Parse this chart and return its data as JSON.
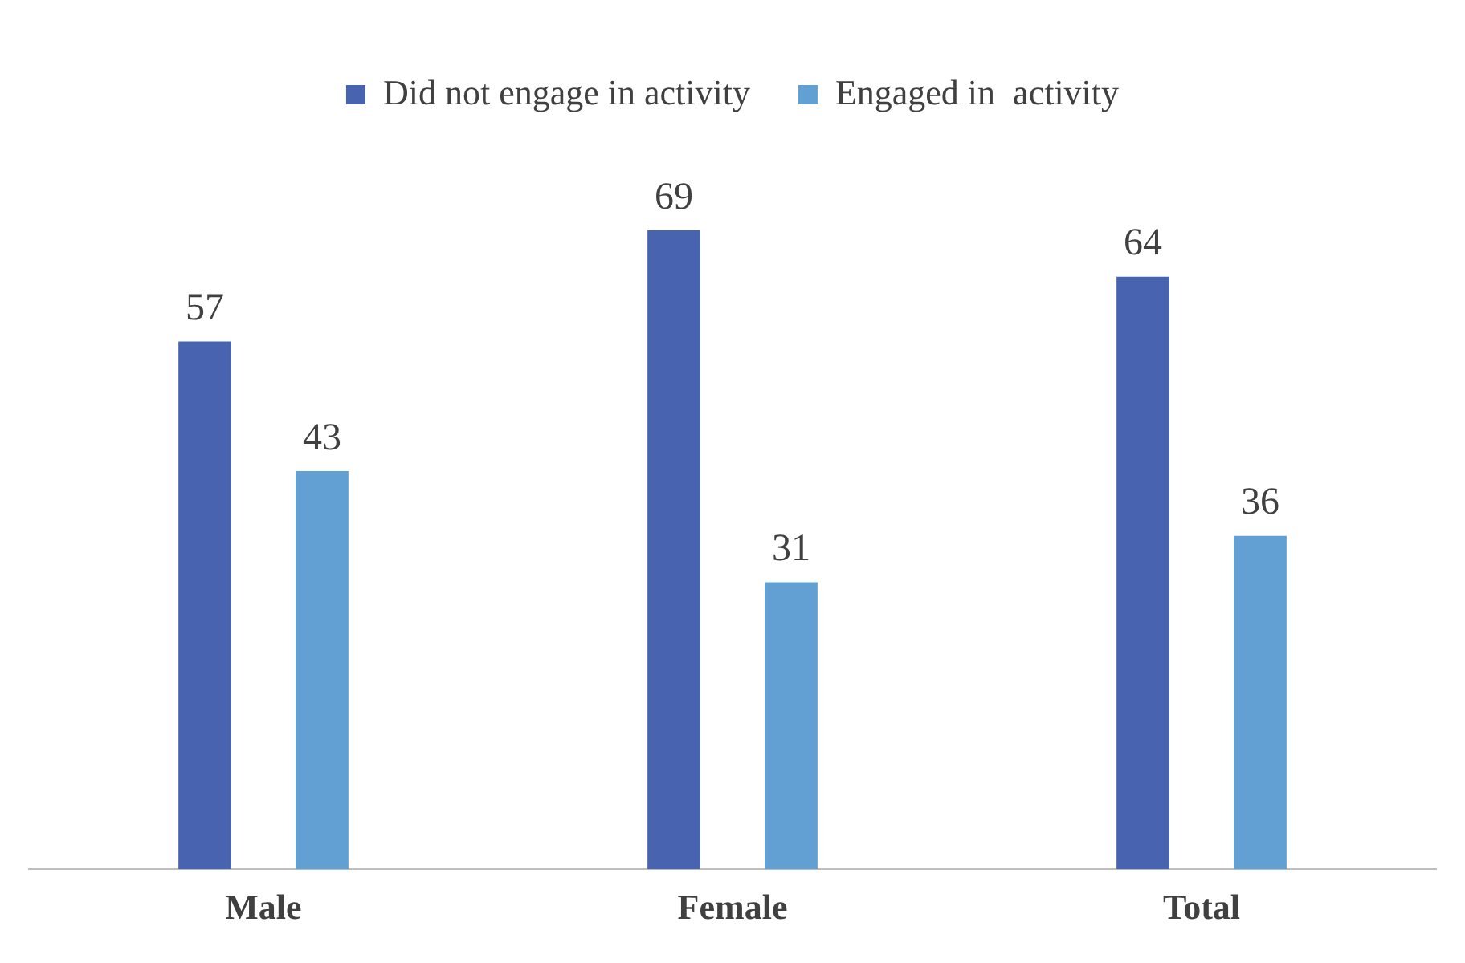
{
  "chart_data": {
    "type": "bar",
    "categories": [
      "Male",
      "Female",
      "Total"
    ],
    "series": [
      {
        "name": "Did not engage in activity",
        "color": "#4864b0",
        "values": [
          57,
          69,
          64
        ]
      },
      {
        "name": "Engaged in  activity",
        "color": "#62a0d4",
        "values": [
          43,
          31,
          36
        ]
      }
    ],
    "data_labels": true,
    "legend": "top",
    "grid": false,
    "tick_labels": "x"
  }
}
